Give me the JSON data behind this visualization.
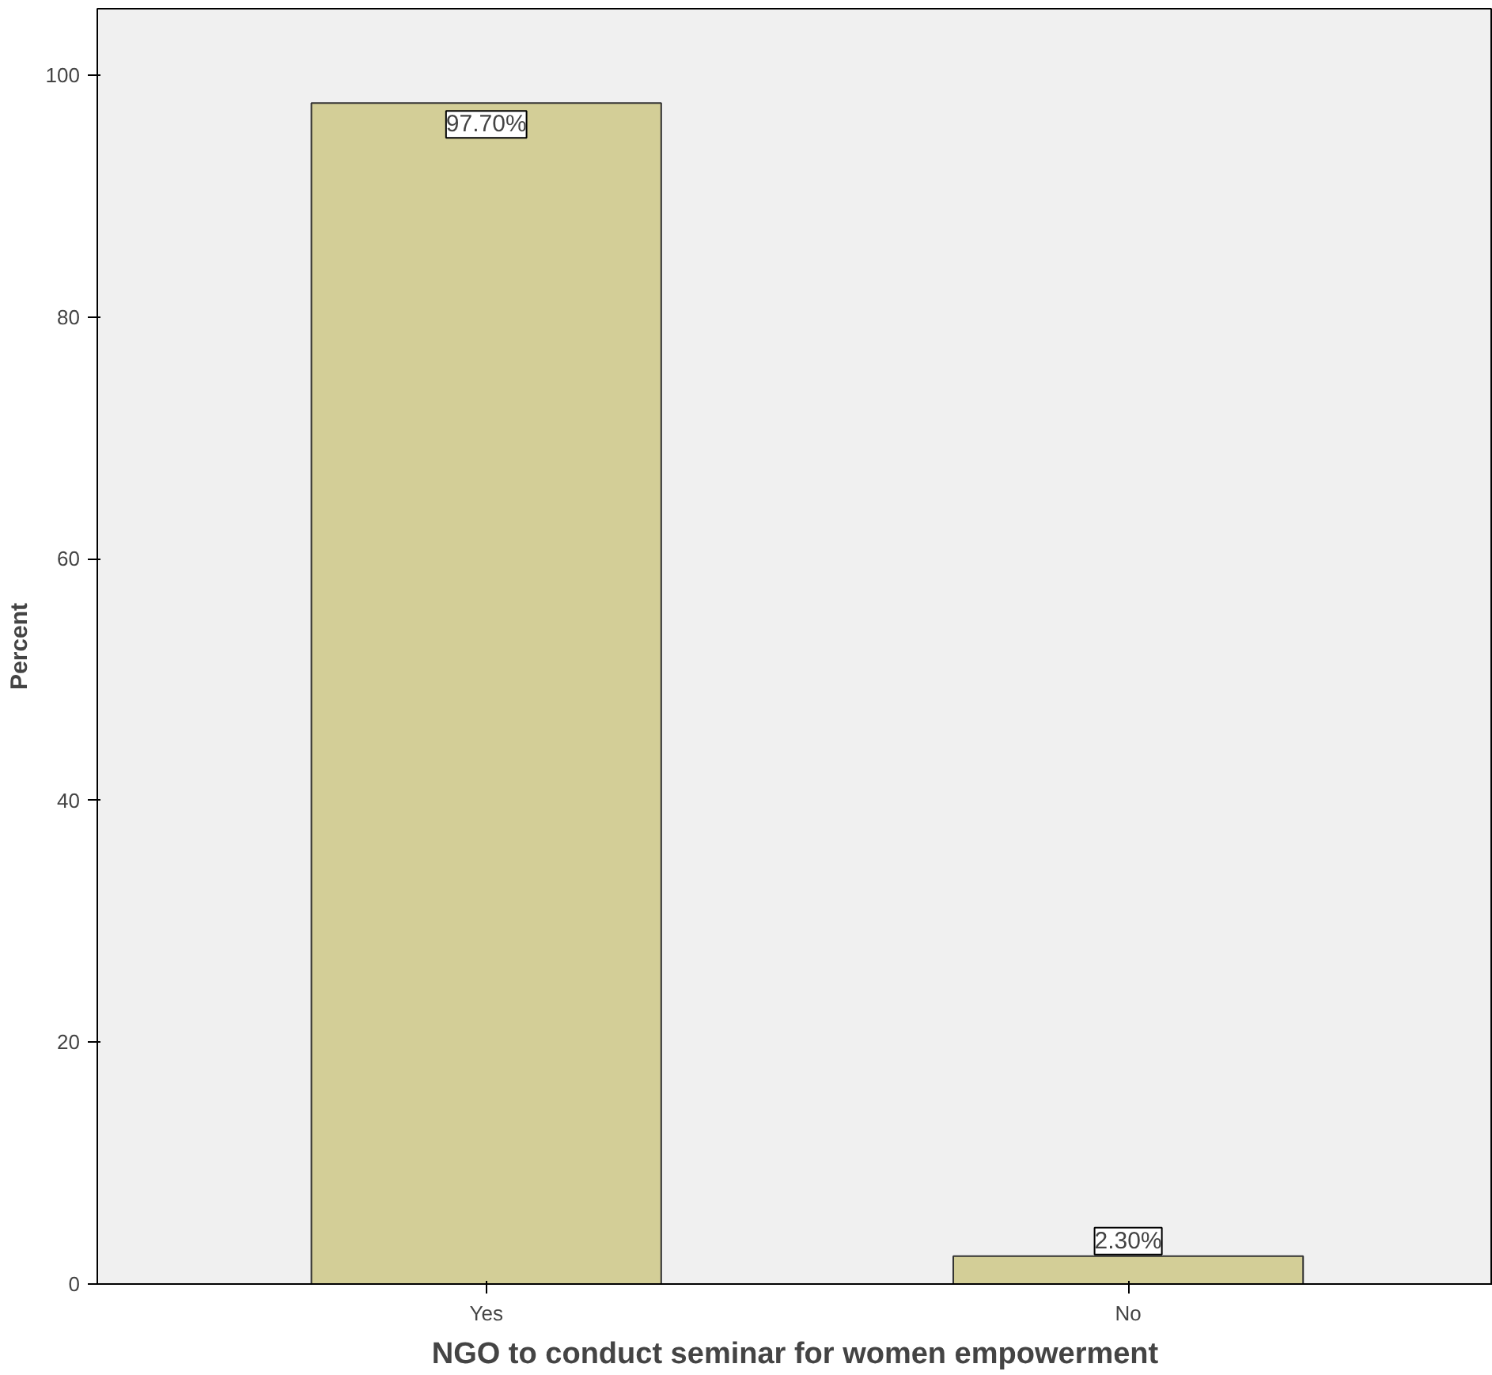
{
  "chart_data": {
    "type": "bar",
    "xlabel": "NGO to conduct seminar for women empowerment",
    "ylabel": "Percent",
    "categories": [
      "Yes",
      "No"
    ],
    "values": [
      97.7,
      2.3
    ],
    "value_labels": [
      "97.70%",
      "2.30%"
    ],
    "color": "#d3ce97",
    "ylim": [
      0,
      105.5
    ],
    "yticks": [
      0,
      20,
      40,
      60,
      80,
      100
    ],
    "grid": false
  }
}
